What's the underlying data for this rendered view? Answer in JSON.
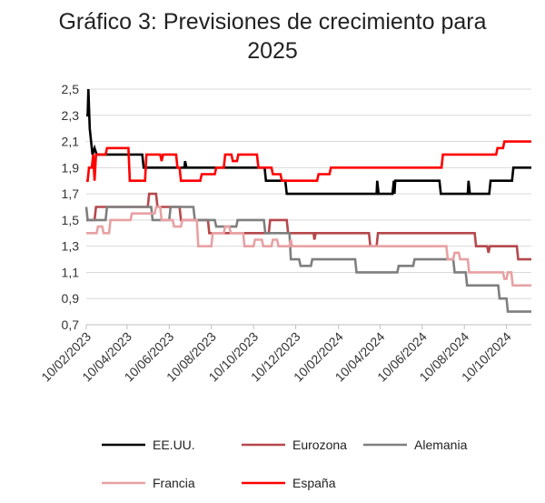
{
  "chart_data": {
    "type": "line",
    "title_line1": "Gráfico 3: Previsiones de crecimiento  para",
    "title_line2": "2025",
    "xlabel": "",
    "ylabel": "",
    "ylim": [
      0.7,
      2.5
    ],
    "y_ticks": [
      "2,5",
      "2,3",
      "2,1",
      "1,9",
      "1,7",
      "1,5",
      "1,3",
      "1,1",
      "0,9",
      "0,7"
    ],
    "x_ticks": [
      "10/02/2023",
      "10/04/2023",
      "10/06/2023",
      "10/08/2023",
      "10/10/2023",
      "10/12/2023",
      "10/02/2024",
      "10/04/2024",
      "10/06/2024",
      "10/08/2024",
      "10/10/2024"
    ],
    "grid": "horizontal",
    "legend_position": "bottom",
    "series": [
      {
        "name": "EE.UU.",
        "color": "#000000",
        "points": [
          [
            "2023-02-10",
            2.3
          ],
          [
            "2023-02-12",
            2.3
          ],
          [
            "2023-02-13",
            2.5
          ],
          [
            "2023-02-15",
            2.2
          ],
          [
            "2023-02-19",
            2.0
          ],
          [
            "2023-02-22",
            2.05
          ],
          [
            "2023-02-25",
            2.0
          ],
          [
            "2023-05-02",
            2.0
          ],
          [
            "2023-05-04",
            1.9
          ],
          [
            "2023-07-02",
            1.9
          ],
          [
            "2023-07-03",
            1.95
          ],
          [
            "2023-07-05",
            1.9
          ],
          [
            "2023-10-26",
            1.9
          ],
          [
            "2023-10-28",
            1.8
          ],
          [
            "2023-11-25",
            1.8
          ],
          [
            "2023-11-27",
            1.7
          ],
          [
            "2024-04-05",
            1.7
          ],
          [
            "2024-04-06",
            1.8
          ],
          [
            "2024-04-08",
            1.7
          ],
          [
            "2024-04-28",
            1.7
          ],
          [
            "2024-04-30",
            1.8
          ],
          [
            "2024-05-01",
            1.7
          ],
          [
            "2024-05-02",
            1.8
          ],
          [
            "2024-07-05",
            1.8
          ],
          [
            "2024-07-07",
            1.7
          ],
          [
            "2024-08-15",
            1.7
          ],
          [
            "2024-08-16",
            1.8
          ],
          [
            "2024-08-18",
            1.7
          ],
          [
            "2024-09-15",
            1.7
          ],
          [
            "2024-09-17",
            1.8
          ],
          [
            "2024-10-18",
            1.8
          ],
          [
            "2024-10-20",
            1.9
          ],
          [
            "2024-11-15",
            1.9
          ]
        ]
      },
      {
        "name": "Eurozona",
        "color": "#b5484c",
        "points": [
          [
            "2023-02-10",
            1.5
          ],
          [
            "2023-02-22",
            1.5
          ],
          [
            "2023-02-24",
            1.6
          ],
          [
            "2023-05-10",
            1.6
          ],
          [
            "2023-05-12",
            1.7
          ],
          [
            "2023-05-22",
            1.7
          ],
          [
            "2023-05-24",
            1.6
          ],
          [
            "2023-06-25",
            1.6
          ],
          [
            "2023-06-27",
            1.5
          ],
          [
            "2023-08-05",
            1.5
          ],
          [
            "2023-08-07",
            1.4
          ],
          [
            "2023-11-01",
            1.4
          ],
          [
            "2023-11-03",
            1.5
          ],
          [
            "2023-11-27",
            1.5
          ],
          [
            "2023-11-29",
            1.4
          ],
          [
            "2024-01-05",
            1.4
          ],
          [
            "2024-01-06",
            1.35
          ],
          [
            "2024-01-08",
            1.4
          ],
          [
            "2024-03-25",
            1.4
          ],
          [
            "2024-03-27",
            1.3
          ],
          [
            "2024-04-05",
            1.3
          ],
          [
            "2024-04-07",
            1.4
          ],
          [
            "2024-08-25",
            1.4
          ],
          [
            "2024-08-27",
            1.3
          ],
          [
            "2024-09-12",
            1.3
          ],
          [
            "2024-09-14",
            1.25
          ],
          [
            "2024-09-16",
            1.3
          ],
          [
            "2024-10-25",
            1.3
          ],
          [
            "2024-10-27",
            1.2
          ],
          [
            "2024-11-15",
            1.2
          ]
        ]
      },
      {
        "name": "Alemania",
        "color": "#7f7f7f",
        "points": [
          [
            "2023-02-10",
            1.6
          ],
          [
            "2023-02-12",
            1.5
          ],
          [
            "2023-03-10",
            1.5
          ],
          [
            "2023-03-12",
            1.6
          ],
          [
            "2023-05-15",
            1.6
          ],
          [
            "2023-05-17",
            1.5
          ],
          [
            "2023-06-10",
            1.5
          ],
          [
            "2023-06-12",
            1.6
          ],
          [
            "2023-07-15",
            1.6
          ],
          [
            "2023-07-17",
            1.5
          ],
          [
            "2023-08-15",
            1.5
          ],
          [
            "2023-08-17",
            1.45
          ],
          [
            "2023-09-15",
            1.45
          ],
          [
            "2023-09-17",
            1.5
          ],
          [
            "2023-10-25",
            1.5
          ],
          [
            "2023-10-27",
            1.4
          ],
          [
            "2023-12-01",
            1.4
          ],
          [
            "2023-12-03",
            1.2
          ],
          [
            "2023-12-15",
            1.2
          ],
          [
            "2023-12-17",
            1.15
          ],
          [
            "2024-01-01",
            1.15
          ],
          [
            "2024-01-03",
            1.2
          ],
          [
            "2024-03-05",
            1.2
          ],
          [
            "2024-03-07",
            1.1
          ],
          [
            "2024-05-05",
            1.1
          ],
          [
            "2024-05-07",
            1.15
          ],
          [
            "2024-05-28",
            1.15
          ],
          [
            "2024-05-30",
            1.2
          ],
          [
            "2024-07-25",
            1.2
          ],
          [
            "2024-07-27",
            1.1
          ],
          [
            "2024-08-12",
            1.1
          ],
          [
            "2024-08-14",
            1.0
          ],
          [
            "2024-09-28",
            1.0
          ],
          [
            "2024-09-30",
            0.9
          ],
          [
            "2024-10-10",
            0.9
          ],
          [
            "2024-10-12",
            0.8
          ],
          [
            "2024-11-15",
            0.8
          ]
        ]
      },
      {
        "name": "Francia",
        "color": "#e8a1a3",
        "points": [
          [
            "2023-02-10",
            1.4
          ],
          [
            "2023-02-25",
            1.4
          ],
          [
            "2023-02-27",
            1.45
          ],
          [
            "2023-03-05",
            1.45
          ],
          [
            "2023-03-07",
            1.4
          ],
          [
            "2023-03-15",
            1.4
          ],
          [
            "2023-03-17",
            1.5
          ],
          [
            "2023-04-15",
            1.5
          ],
          [
            "2023-04-17",
            1.55
          ],
          [
            "2023-05-20",
            1.55
          ],
          [
            "2023-05-22",
            1.6
          ],
          [
            "2023-05-28",
            1.6
          ],
          [
            "2023-05-30",
            1.5
          ],
          [
            "2023-06-15",
            1.5
          ],
          [
            "2023-06-17",
            1.45
          ],
          [
            "2023-06-27",
            1.45
          ],
          [
            "2023-06-29",
            1.5
          ],
          [
            "2023-07-20",
            1.5
          ],
          [
            "2023-07-22",
            1.3
          ],
          [
            "2023-08-10",
            1.3
          ],
          [
            "2023-08-12",
            1.4
          ],
          [
            "2023-08-28",
            1.4
          ],
          [
            "2023-08-30",
            1.45
          ],
          [
            "2023-09-05",
            1.45
          ],
          [
            "2023-09-07",
            1.4
          ],
          [
            "2023-09-25",
            1.4
          ],
          [
            "2023-09-27",
            1.3
          ],
          [
            "2023-10-10",
            1.3
          ],
          [
            "2023-10-12",
            1.35
          ],
          [
            "2023-10-22",
            1.35
          ],
          [
            "2023-10-24",
            1.3
          ],
          [
            "2023-11-05",
            1.3
          ],
          [
            "2023-11-07",
            1.35
          ],
          [
            "2023-11-13",
            1.35
          ],
          [
            "2023-11-15",
            1.3
          ],
          [
            "2023-12-01",
            1.3
          ],
          [
            "2023-12-03",
            1.35
          ],
          [
            "2023-12-05",
            1.3
          ],
          [
            "2024-07-15",
            1.3
          ],
          [
            "2024-07-17",
            1.2
          ],
          [
            "2024-07-25",
            1.2
          ],
          [
            "2024-07-27",
            1.25
          ],
          [
            "2024-08-02",
            1.25
          ],
          [
            "2024-08-04",
            1.2
          ],
          [
            "2024-08-15",
            1.2
          ],
          [
            "2024-08-17",
            1.1
          ],
          [
            "2024-10-05",
            1.1
          ],
          [
            "2024-10-07",
            1.05
          ],
          [
            "2024-10-10",
            1.05
          ],
          [
            "2024-10-12",
            1.1
          ],
          [
            "2024-10-17",
            1.1
          ],
          [
            "2024-10-19",
            1.0
          ],
          [
            "2024-11-15",
            1.0
          ]
        ]
      },
      {
        "name": "España",
        "color": "#ff0000",
        "points": [
          [
            "2023-02-10",
            1.8
          ],
          [
            "2023-02-12",
            1.8
          ],
          [
            "2023-02-14",
            1.9
          ],
          [
            "2023-02-18",
            1.9
          ],
          [
            "2023-02-20",
            2.0
          ],
          [
            "2023-02-22",
            1.8
          ],
          [
            "2023-02-24",
            2.0
          ],
          [
            "2023-03-10",
            2.0
          ],
          [
            "2023-03-12",
            2.05
          ],
          [
            "2023-04-12",
            2.05
          ],
          [
            "2023-04-14",
            1.8
          ],
          [
            "2023-05-06",
            1.8
          ],
          [
            "2023-05-08",
            2.0
          ],
          [
            "2023-05-28",
            2.0
          ],
          [
            "2023-05-30",
            1.95
          ],
          [
            "2023-06-01",
            2.0
          ],
          [
            "2023-06-20",
            2.0
          ],
          [
            "2023-06-22",
            1.9
          ],
          [
            "2023-06-25",
            1.9
          ],
          [
            "2023-06-27",
            1.8
          ],
          [
            "2023-07-25",
            1.8
          ],
          [
            "2023-07-27",
            1.85
          ],
          [
            "2023-08-15",
            1.85
          ],
          [
            "2023-08-17",
            1.9
          ],
          [
            "2023-08-28",
            1.9
          ],
          [
            "2023-08-30",
            2.0
          ],
          [
            "2023-09-08",
            2.0
          ],
          [
            "2023-09-10",
            1.95
          ],
          [
            "2023-09-16",
            1.95
          ],
          [
            "2023-09-18",
            2.0
          ],
          [
            "2023-10-15",
            2.0
          ],
          [
            "2023-10-17",
            1.9
          ],
          [
            "2023-11-05",
            1.9
          ],
          [
            "2023-11-07",
            1.85
          ],
          [
            "2023-11-18",
            1.85
          ],
          [
            "2023-11-20",
            1.8
          ],
          [
            "2024-01-10",
            1.8
          ],
          [
            "2024-01-12",
            1.85
          ],
          [
            "2024-01-28",
            1.85
          ],
          [
            "2024-01-30",
            1.9
          ],
          [
            "2024-07-08",
            1.9
          ],
          [
            "2024-07-10",
            2.0
          ],
          [
            "2024-09-25",
            2.0
          ],
          [
            "2024-09-27",
            2.05
          ],
          [
            "2024-10-05",
            2.05
          ],
          [
            "2024-10-07",
            2.1
          ],
          [
            "2024-11-15",
            2.1
          ]
        ]
      }
    ]
  }
}
